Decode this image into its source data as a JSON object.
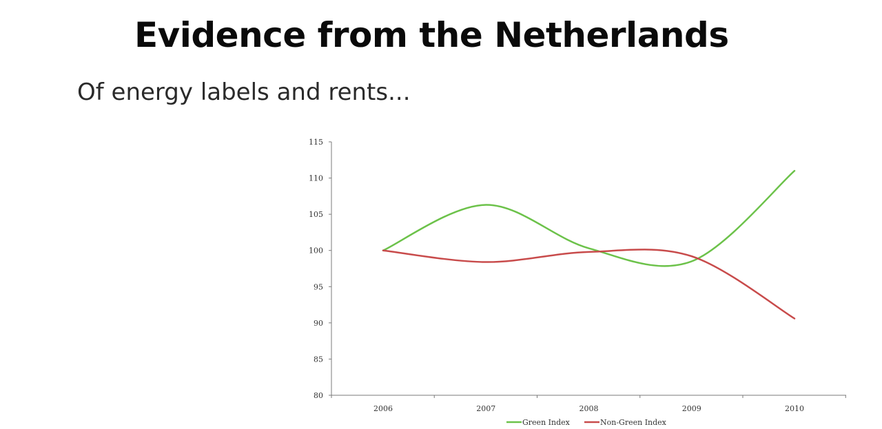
{
  "slide": {
    "title": "Evidence from the Netherlands",
    "subtitle": "Of energy labels and rents..."
  },
  "chart_data": {
    "type": "line",
    "title": "",
    "xlabel": "",
    "ylabel": "",
    "categories": [
      "2006",
      "2007",
      "2008",
      "2009",
      "2010"
    ],
    "yticks": [
      "115",
      "110",
      "105",
      "100",
      "95",
      "90",
      "85",
      "80"
    ],
    "ylim": [
      80,
      115
    ],
    "grid": false,
    "legend_position": "bottom-center",
    "smooth": true,
    "series": [
      {
        "name": "Green Index",
        "color": "#6cc24a",
        "values": [
          100,
          106.3,
          100.3,
          98.5,
          111
        ]
      },
      {
        "name": "Non-Green Index",
        "color": "#c84b4b",
        "values": [
          100,
          98.4,
          99.8,
          99.2,
          90.6
        ]
      }
    ]
  }
}
